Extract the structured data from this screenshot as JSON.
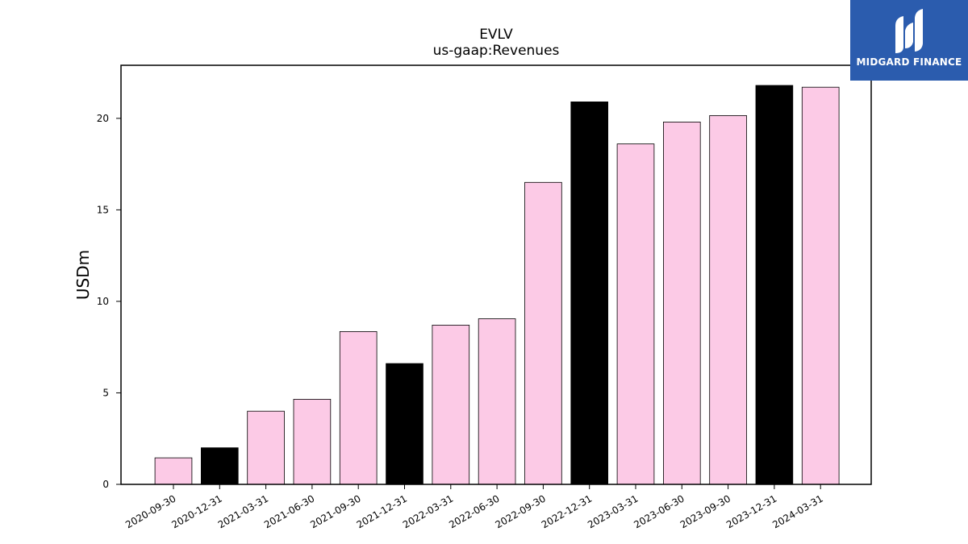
{
  "logo": {
    "text": "MIDGARD FINANCE",
    "icon": "midgard-finance-logo-icon",
    "background": "#2b5cae"
  },
  "chart_data": {
    "type": "bar",
    "title": "EVLV",
    "subtitle": "us-gaap:Revenues",
    "xlabel": "",
    "ylabel": "USDm",
    "ylim": [
      0,
      22.9
    ],
    "yticks": [
      0,
      5,
      10,
      15,
      20
    ],
    "categories": [
      "2020-09-30",
      "2020-12-31",
      "2021-03-31",
      "2021-06-30",
      "2021-09-30",
      "2021-12-31",
      "2022-03-31",
      "2022-06-30",
      "2022-09-30",
      "2022-12-31",
      "2023-03-31",
      "2023-06-30",
      "2023-09-30",
      "2023-12-31",
      "2024-03-31"
    ],
    "values": [
      1.45,
      2.0,
      4.0,
      4.65,
      8.35,
      6.6,
      8.7,
      9.05,
      16.5,
      20.9,
      18.6,
      19.8,
      20.15,
      21.8,
      21.7
    ],
    "colors": [
      "#fccae6",
      "#000000",
      "#fccae6",
      "#fccae6",
      "#fccae6",
      "#000000",
      "#fccae6",
      "#fccae6",
      "#fccae6",
      "#000000",
      "#fccae6",
      "#fccae6",
      "#fccae6",
      "#000000",
      "#fccae6"
    ],
    "grid": false,
    "legend": "none"
  }
}
